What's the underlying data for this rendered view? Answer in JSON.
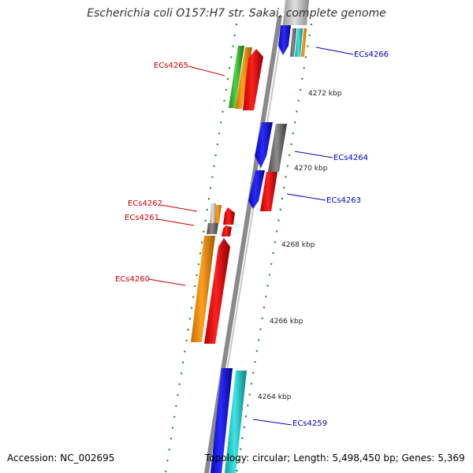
{
  "title": "Escherichia coli O157:H7 str. Sakai, complete genome",
  "footer": {
    "accession": "Accession: NC_002695",
    "topology": "Topology: circular; Length: 5,498,450 bp; Genes: 5,369"
  },
  "ticks": [
    {
      "label": "4272 kbp",
      "kbp": 4272
    },
    {
      "label": "4270 kbp",
      "kbp": 4270
    },
    {
      "label": "4268 kbp",
      "kbp": 4268
    },
    {
      "label": "4266 kbp",
      "kbp": 4266
    },
    {
      "label": "4264 kbp",
      "kbp": 4264
    }
  ],
  "genes": [
    {
      "name": "ECs4266",
      "strand": "reverse",
      "color": "#0000cc"
    },
    {
      "name": "ECs4265",
      "strand": "forward",
      "color": "#cc0000"
    },
    {
      "name": "ECs4264",
      "strand": "reverse",
      "color": "#0000cc"
    },
    {
      "name": "ECs4263",
      "strand": "reverse",
      "color": "#0000cc"
    },
    {
      "name": "ECs4262",
      "strand": "forward",
      "color": "#cc0000"
    },
    {
      "name": "ECs4261",
      "strand": "forward",
      "color": "#cc0000"
    },
    {
      "name": "ECs4260",
      "strand": "forward",
      "color": "#cc0000"
    },
    {
      "name": "ECs4259",
      "strand": "reverse",
      "color": "#0000cc"
    }
  ],
  "colors": {
    "backbone": "#8a8a8a",
    "tick_mark": "#1a7f1a",
    "blue": "#1010e0",
    "red": "#e80000",
    "orange": "#f08c00",
    "green": "#36b52c",
    "cyan": "#1ec8c8",
    "gray": "#6e6e6e",
    "reverse_label": "#0000cc",
    "forward_label": "#cc0000"
  }
}
